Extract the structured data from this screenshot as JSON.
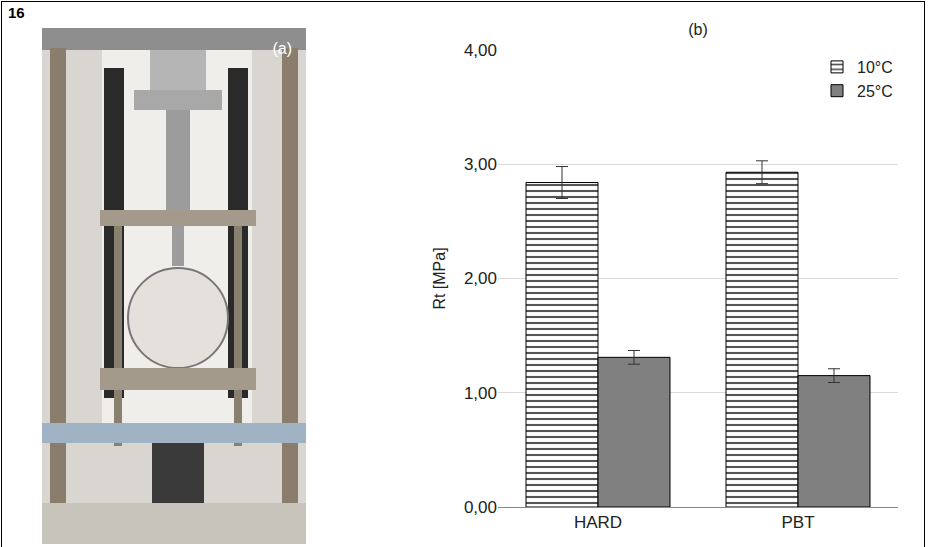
{
  "figure_label": "16",
  "photo": {
    "label": "(a)"
  },
  "chart_data": {
    "type": "bar",
    "title": "(b)",
    "categories": [
      "HARD",
      "PBT"
    ],
    "y_label": "Rt [MPa]",
    "series": [
      {
        "name": "10°C",
        "color": "#ffffff",
        "marker": "hatch",
        "values": [
          2.84,
          2.93
        ],
        "errors": [
          0.14,
          0.1
        ]
      },
      {
        "name": "25°C",
        "color": "#808080",
        "values": [
          1.31,
          1.15
        ],
        "errors": [
          0.06,
          0.06
        ]
      }
    ],
    "ylim": [
      0,
      4
    ],
    "yticks": [
      {
        "value": 0,
        "label": "0,00"
      },
      {
        "value": 1,
        "label": "1,00"
      },
      {
        "value": 2,
        "label": "2,00"
      },
      {
        "value": 3,
        "label": "3,00"
      },
      {
        "value": 4,
        "label": "4,00"
      }
    ],
    "grid": true,
    "legend": "top right"
  }
}
